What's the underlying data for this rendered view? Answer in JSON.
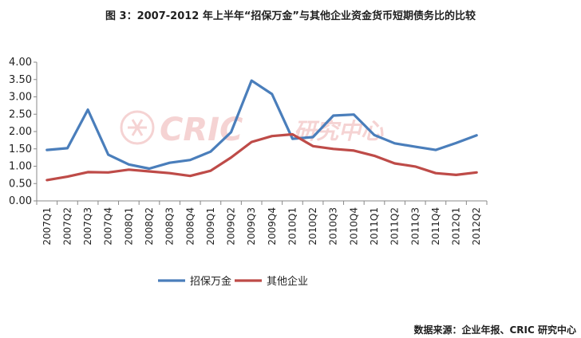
{
  "chart_data": {
    "type": "line",
    "title": "图 3：2007-2012 年上半年“招保万金”与其他企业资金货币短期债务比的比较",
    "xlabel": "",
    "ylabel": "",
    "ylim": [
      0,
      4
    ],
    "yticks": [
      "0.00",
      "0.50",
      "1.00",
      "1.50",
      "2.00",
      "2.50",
      "3.00",
      "3.50",
      "4.00"
    ],
    "categories": [
      "2007Q1",
      "2007Q2",
      "2007Q3",
      "2007Q4",
      "2008Q1",
      "2008Q2",
      "2008Q3",
      "2008Q4",
      "2009Q1",
      "2009Q2",
      "2009Q3",
      "2009Q4",
      "2010Q1",
      "2010Q2",
      "2010Q3",
      "2010Q4",
      "2011Q1",
      "2011Q2",
      "2011Q3",
      "2011Q4",
      "2012Q1",
      "2012Q2"
    ],
    "series": [
      {
        "name": "招保万金",
        "color": "#4a7ebb",
        "values": [
          1.47,
          1.52,
          2.63,
          1.33,
          1.05,
          0.93,
          1.1,
          1.18,
          1.42,
          1.98,
          3.47,
          3.08,
          1.79,
          1.84,
          2.46,
          2.49,
          1.9,
          1.66,
          1.56,
          1.47,
          1.67,
          1.89
        ]
      },
      {
        "name": "其他企业",
        "color": "#be4b48",
        "values": [
          0.6,
          0.7,
          0.83,
          0.82,
          0.9,
          0.85,
          0.8,
          0.72,
          0.87,
          1.25,
          1.7,
          1.87,
          1.92,
          1.58,
          1.5,
          1.45,
          1.3,
          1.08,
          0.99,
          0.8,
          0.75,
          0.82
        ]
      }
    ],
    "grid": false,
    "legend": "bottom"
  },
  "watermark": {
    "text_latin": "CRIC",
    "text_cn": "研究中心"
  },
  "source_note": "数据来源：企业年报、CRIC 研究中心"
}
